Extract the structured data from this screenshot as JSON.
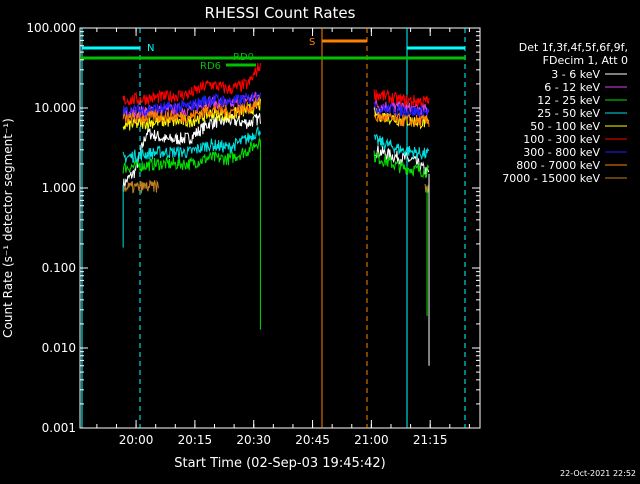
{
  "chart_data": {
    "type": "line",
    "title": "RHESSI Count Rates",
    "xlabel": "Start Time (02-Sep-03 19:45:42)",
    "ylabel": "Count Rate (s⁻¹ detector segment⁻¹)",
    "yscale": "log",
    "ylim": [
      0.001,
      100
    ],
    "xlim_minutes": [
      0,
      40
    ],
    "x_ticks": [
      {
        "label": "20:00",
        "value": 14.3
      },
      {
        "label": "20:15",
        "value": 29.3
      },
      {
        "label": "20:30",
        "value": 44.3
      },
      {
        "label": "20:45",
        "value": 59.3
      },
      {
        "label": "21:00",
        "value": 74.3
      },
      {
        "label": "21:15",
        "value": 89.3
      }
    ],
    "y_ticks": [
      {
        "label": "100.000",
        "value": 100
      },
      {
        "label": "10.000",
        "value": 10
      },
      {
        "label": "1.000",
        "value": 1
      },
      {
        "label": "0.100",
        "value": 0.1
      },
      {
        "label": "0.010",
        "value": 0.01
      },
      {
        "label": "0.001",
        "value": 0.001
      }
    ],
    "x_range": [
      0,
      102
    ],
    "legend_header": [
      "Det 1f,3f,4f,5f,6f,9f,",
      "FDecim 1, Att 0"
    ],
    "legend_position": "right",
    "series": [
      {
        "name": "3 - 6 keV",
        "color": "#ffffff",
        "segments": [
          [
            [
              11,
              1.1
            ],
            [
              14,
              1.6
            ],
            [
              17,
              5.0
            ],
            [
              22,
              4.0
            ],
            [
              28,
              4.2
            ],
            [
              33,
              6.5
            ],
            [
              38,
              7.0
            ],
            [
              43,
              6.5
            ],
            [
              46,
              7.5
            ]
          ],
          [
            [
              75,
              3.0
            ],
            [
              80,
              2.5
            ],
            [
              85,
              2.2
            ],
            [
              89,
              1.5
            ]
          ]
        ]
      },
      {
        "name": "6 - 12 keV",
        "color": "#e040e0",
        "segments": [
          [
            [
              11,
              8.5
            ],
            [
              20,
              9.5
            ],
            [
              28,
              9.5
            ],
            [
              33,
              12
            ],
            [
              38,
              11
            ],
            [
              43,
              13
            ],
            [
              46,
              14
            ]
          ],
          [
            [
              75,
              11
            ],
            [
              82,
              10
            ],
            [
              89,
              9.5
            ]
          ]
        ]
      },
      {
        "name": "12 - 25 keV",
        "color": "#00e000",
        "segments": [
          [
            [
              11,
              1.8
            ],
            [
              20,
              2.0
            ],
            [
              28,
              2.0
            ],
            [
              33,
              2.4
            ],
            [
              38,
              2.3
            ],
            [
              43,
              3.0
            ],
            [
              46,
              4.0
            ]
          ],
          [
            [
              75,
              2.5
            ],
            [
              82,
              1.8
            ],
            [
              89,
              1.6
            ]
          ]
        ]
      },
      {
        "name": "25 - 50 keV",
        "color": "#00e0e0",
        "segments": [
          [
            [
              11,
              2.4
            ],
            [
              20,
              2.8
            ],
            [
              28,
              2.8
            ],
            [
              33,
              3.5
            ],
            [
              38,
              3.2
            ],
            [
              43,
              4.2
            ],
            [
              46,
              5.5
            ]
          ],
          [
            [
              75,
              4.0
            ],
            [
              82,
              3.0
            ],
            [
              89,
              2.6
            ]
          ]
        ]
      },
      {
        "name": "50 - 100 keV",
        "color": "#ffff00",
        "segments": [
          [
            [
              11,
              6.0
            ],
            [
              20,
              6.8
            ],
            [
              28,
              6.8
            ],
            [
              33,
              8.5
            ],
            [
              38,
              8.0
            ],
            [
              43,
              9.5
            ],
            [
              46,
              11
            ]
          ],
          [
            [
              75,
              8.5
            ],
            [
              82,
              7.0
            ],
            [
              89,
              6.5
            ]
          ]
        ]
      },
      {
        "name": "100 - 300 keV",
        "color": "#ff0000",
        "segments": [
          [
            [
              11,
              12.5
            ],
            [
              20,
              13.5
            ],
            [
              28,
              15
            ],
            [
              33,
              20
            ],
            [
              38,
              17
            ],
            [
              43,
              20
            ],
            [
              46,
              35
            ]
          ],
          [
            [
              75,
              15
            ],
            [
              82,
              12.5
            ],
            [
              89,
              12
            ]
          ]
        ]
      },
      {
        "name": "300 - 800 keV",
        "color": "#2020ff",
        "segments": [
          [
            [
              11,
              9.0
            ],
            [
              20,
              9.8
            ],
            [
              28,
              10.5
            ],
            [
              33,
              13
            ],
            [
              38,
              12
            ],
            [
              43,
              13
            ],
            [
              46,
              15
            ]
          ],
          [
            [
              75,
              10
            ],
            [
              82,
              9.3
            ],
            [
              89,
              8.8
            ]
          ]
        ]
      },
      {
        "name": "800 - 7000 keV",
        "color": "#ff8000",
        "segments": [
          [
            [
              11,
              7.2
            ],
            [
              20,
              7.8
            ],
            [
              28,
              7.8
            ],
            [
              33,
              9.5
            ],
            [
              38,
              9.0
            ],
            [
              43,
              10
            ],
            [
              46,
              12
            ]
          ],
          [
            [
              75,
              7.8
            ],
            [
              82,
              7.0
            ],
            [
              89,
              6.8
            ]
          ]
        ]
      },
      {
        "name": "7000 - 15000 keV",
        "color": "#c08020",
        "segments": [
          [
            [
              11,
              1.0
            ],
            [
              20,
              1.05
            ]
          ],
          [
            [
              88,
              1.0
            ],
            [
              89,
              1.0
            ]
          ]
        ]
      }
    ],
    "annotations": [
      {
        "label": "N",
        "color": "#00ffff"
      },
      {
        "label": "S",
        "color": "#ff8000"
      },
      {
        "label": "RD0",
        "color": "#00c000"
      },
      {
        "label": "RD6",
        "color": "#00c000"
      }
    ]
  },
  "footer_timestamp": "22-Oct-2021 22:52"
}
